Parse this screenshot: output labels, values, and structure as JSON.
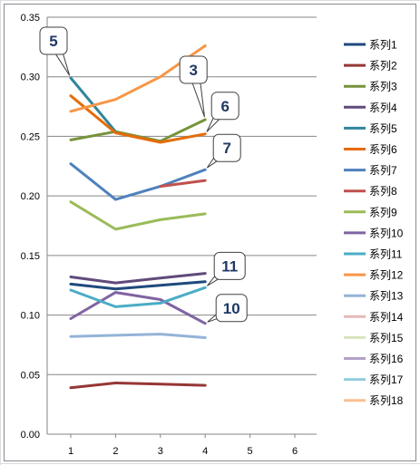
{
  "chart_data": {
    "type": "line",
    "title": "",
    "xlabel": "",
    "ylabel": "",
    "ylim": [
      0,
      0.35
    ],
    "yticks": [
      "0.00",
      "0.05",
      "0.10",
      "0.15",
      "0.20",
      "0.25",
      "0.30",
      "0.35"
    ],
    "xlim": [
      1,
      6
    ],
    "xticks": [
      "1",
      "2",
      "3",
      "4",
      "5",
      "6"
    ],
    "x": [
      1,
      2,
      3,
      4
    ],
    "grid": "horizontal",
    "legend_position": "right",
    "series": [
      {
        "name": "系列1",
        "color": "#1f497d",
        "values": [
          0.126,
          0.122,
          0.125,
          0.128
        ]
      },
      {
        "name": "系列2",
        "color": "#953735",
        "values": [
          0.039,
          0.043,
          0.042,
          0.041
        ]
      },
      {
        "name": "系列3",
        "color": "#77933c",
        "values": [
          0.247,
          0.254,
          0.246,
          0.264
        ]
      },
      {
        "name": "系列4",
        "color": "#604a7b",
        "values": [
          0.132,
          0.127,
          0.131,
          0.135
        ]
      },
      {
        "name": "系列5",
        "color": "#31859c",
        "values": [
          0.299,
          0.254,
          null,
          null
        ]
      },
      {
        "name": "系列6",
        "color": "#e46c0a",
        "values": [
          0.284,
          0.253,
          0.245,
          0.252
        ]
      },
      {
        "name": "系列7",
        "color": "#4f81bd",
        "values": [
          0.227,
          0.197,
          0.208,
          0.222
        ]
      },
      {
        "name": "系列8",
        "color": "#c0504d",
        "values": [
          null,
          null,
          0.208,
          0.213
        ]
      },
      {
        "name": "系列9",
        "color": "#9bbb59",
        "values": [
          0.195,
          0.172,
          0.18,
          0.185
        ]
      },
      {
        "name": "系列10",
        "color": "#8064a2",
        "values": [
          0.097,
          0.119,
          0.113,
          0.093
        ]
      },
      {
        "name": "系列11",
        "color": "#4bacc6",
        "values": [
          0.121,
          0.107,
          0.11,
          0.123
        ]
      },
      {
        "name": "系列12",
        "color": "#f79646",
        "values": [
          0.271,
          0.281,
          0.3,
          0.326
        ]
      },
      {
        "name": "系列13",
        "color": "#95b3d7",
        "values": [
          0.082,
          0.083,
          0.084,
          0.081
        ]
      },
      {
        "name": "系列14",
        "color": "#e6b9b8",
        "values": [
          null,
          null,
          null,
          null
        ]
      },
      {
        "name": "系列15",
        "color": "#d7e4bd",
        "values": [
          null,
          null,
          null,
          null
        ]
      },
      {
        "name": "系列16",
        "color": "#b3a2c7",
        "values": [
          null,
          null,
          null,
          null
        ]
      },
      {
        "name": "系列17",
        "color": "#93cddd",
        "values": [
          null,
          null,
          null,
          null
        ]
      },
      {
        "name": "系列18",
        "color": "#fac090",
        "values": [
          null,
          null,
          null,
          null
        ]
      }
    ],
    "annotations": [
      {
        "text": "5",
        "series": "系列5",
        "at_x": 1
      },
      {
        "text": "3",
        "series": "系列3",
        "at_x": 4
      },
      {
        "text": "6",
        "series": "系列6",
        "at_x": 4
      },
      {
        "text": "7",
        "series": "系列7",
        "at_x": 4
      },
      {
        "text": "11",
        "series": "系列11",
        "at_x": 4
      },
      {
        "text": "10",
        "series": "系列10",
        "at_x": 4
      }
    ]
  }
}
